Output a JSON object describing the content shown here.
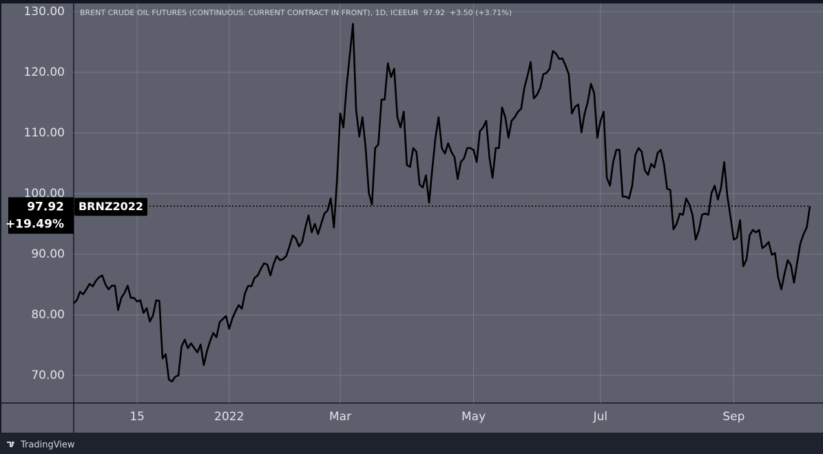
{
  "chart_data": {
    "type": "line",
    "title": "BRENT CRUDE OIL FUTURES (CONTINUOUS: CURRENT CONTRACT IN FRONT), 1D, ICEEUR  97.92  +3.50 (+3.71%)",
    "change_label": "+19.49%",
    "categories": [
      null,
      null,
      null,
      null,
      null,
      null,
      null,
      null,
      null,
      null,
      null,
      null,
      null,
      null,
      null,
      null,
      null,
      null,
      null,
      null,
      "15",
      null,
      null,
      null,
      null,
      null,
      null,
      null,
      null,
      null,
      null,
      null,
      null,
      null,
      null,
      null,
      null,
      null,
      null,
      null,
      null,
      null,
      null,
      null,
      null,
      null,
      null,
      null,
      null,
      "2022",
      null,
      null,
      null,
      null,
      null,
      null,
      null,
      null,
      null,
      null,
      null,
      null,
      null,
      null,
      null,
      null,
      null,
      null,
      null,
      null,
      null,
      null,
      null,
      null,
      null,
      null,
      null,
      null,
      null,
      null,
      null,
      null,
      null,
      null,
      "Mar",
      null,
      null,
      null,
      null,
      null,
      null,
      null,
      null,
      null,
      null,
      null,
      null,
      null,
      null,
      null,
      null,
      null,
      null,
      null,
      null,
      null,
      null,
      null,
      null,
      null,
      null,
      null,
      null,
      null,
      null,
      null,
      null,
      null,
      null,
      null,
      null,
      null,
      null,
      null,
      null,
      null,
      "May",
      null,
      null,
      null,
      null,
      null,
      null,
      null,
      null,
      null,
      null,
      null,
      null,
      null,
      null,
      null,
      null,
      null,
      null,
      null,
      null,
      null,
      null,
      null,
      null,
      null,
      null,
      null,
      null,
      null,
      null,
      null,
      null,
      null,
      null,
      null,
      null,
      null,
      null,
      null,
      "Jul",
      null,
      null,
      null,
      null,
      null,
      null,
      null,
      null,
      null,
      null,
      null,
      null,
      null,
      null,
      null,
      null,
      null,
      null,
      null,
      null,
      null,
      null,
      null,
      null,
      null,
      null,
      null,
      null,
      null,
      null,
      null,
      null,
      null,
      null,
      null,
      null,
      null,
      null,
      null,
      null,
      null,
      "Sep",
      null,
      null,
      null,
      null,
      null,
      null,
      null,
      null,
      null,
      null,
      null,
      null,
      null,
      null,
      null,
      null,
      null,
      null,
      null,
      null,
      null,
      null,
      null,
      null
    ],
    "series": [
      {
        "name": "BRNZ2022",
        "color": "#000000",
        "values": [
          81.9,
          82.4,
          83.8,
          83.4,
          84.2,
          85.1,
          84.7,
          85.6,
          86.2,
          86.5,
          85.0,
          84.2,
          84.8,
          84.8,
          80.8,
          82.8,
          83.6,
          84.8,
          82.8,
          82.8,
          82.2,
          82.4,
          80.3,
          81.1,
          78.9,
          79.9,
          82.4,
          82.3,
          72.8,
          73.5,
          69.3,
          69.0,
          69.8,
          70.0,
          74.8,
          75.9,
          74.5,
          75.3,
          74.5,
          73.8,
          75.1,
          71.7,
          74.0,
          75.7,
          77.0,
          76.3,
          78.8,
          79.3,
          79.8,
          77.7,
          79.4,
          80.6,
          81.6,
          81.0,
          83.6,
          84.8,
          84.7,
          86.1,
          86.5,
          87.6,
          88.5,
          88.3,
          86.5,
          88.4,
          89.7,
          89.0,
          89.2,
          89.7,
          91.3,
          93.1,
          92.6,
          91.3,
          92.0,
          94.4,
          96.4,
          93.6,
          95.0,
          93.3,
          95.0,
          96.7,
          97.2,
          99.2,
          94.4,
          102.4,
          113.2,
          110.9,
          117.7,
          122.8,
          128.0,
          113.8,
          109.4,
          112.6,
          107.5,
          100.1,
          98.2,
          107.5,
          108.1,
          115.5,
          115.5,
          121.5,
          119.2,
          120.6,
          112.6,
          110.9,
          113.5,
          104.7,
          104.4,
          107.5,
          106.9,
          101.5,
          101.0,
          103.0,
          98.5,
          104.1,
          109.2,
          112.6,
          107.5,
          106.6,
          108.3,
          106.9,
          106.0,
          102.4,
          105.2,
          105.8,
          107.5,
          107.5,
          107.2,
          105.2,
          110.3,
          110.9,
          112.0,
          106.0,
          102.6,
          107.5,
          107.5,
          114.2,
          112.6,
          109.2,
          112.0,
          112.6,
          113.5,
          114.0,
          117.4,
          119.4,
          121.7,
          115.7,
          116.3,
          117.4,
          119.7,
          119.9,
          120.6,
          123.5,
          123.1,
          122.2,
          122.3,
          121.1,
          119.7,
          113.2,
          114.3,
          114.7,
          110.1,
          113.2,
          115.1,
          118.1,
          116.6,
          109.2,
          112.0,
          113.5,
          102.6,
          101.3,
          105.2,
          107.2,
          107.2,
          99.5,
          99.5,
          99.2,
          101.3,
          106.4,
          107.5,
          106.9,
          103.8,
          103.1,
          104.9,
          104.3,
          106.7,
          107.2,
          104.9,
          100.8,
          100.6,
          94.1,
          95.0,
          96.7,
          96.5,
          99.2,
          98.2,
          96.5,
          92.4,
          93.9,
          96.5,
          96.7,
          96.5,
          100.1,
          101.3,
          99.0,
          101.0,
          105.2,
          99.5,
          96.1,
          92.4,
          92.7,
          95.6,
          88.0,
          89.1,
          93.1,
          94.0,
          93.6,
          94.0,
          91.0,
          91.4,
          92.0,
          89.9,
          90.2,
          86.2,
          84.2,
          86.8,
          89.0,
          88.2,
          85.3,
          88.7,
          91.8,
          93.3,
          94.4,
          97.92
        ]
      }
    ],
    "ylim": [
      65.45,
      131.36
    ],
    "yticks": [
      {
        "value": 70,
        "label": "70.00"
      },
      {
        "value": 80,
        "label": "80.00"
      },
      {
        "value": 90,
        "label": "90.00"
      },
      {
        "value": 100,
        "label": "100.00"
      },
      {
        "value": 110,
        "label": "110.00"
      },
      {
        "value": 120,
        "label": "120.00"
      },
      {
        "value": 130,
        "label": "130.00"
      }
    ],
    "grid": true
  },
  "footer": "TradingView"
}
